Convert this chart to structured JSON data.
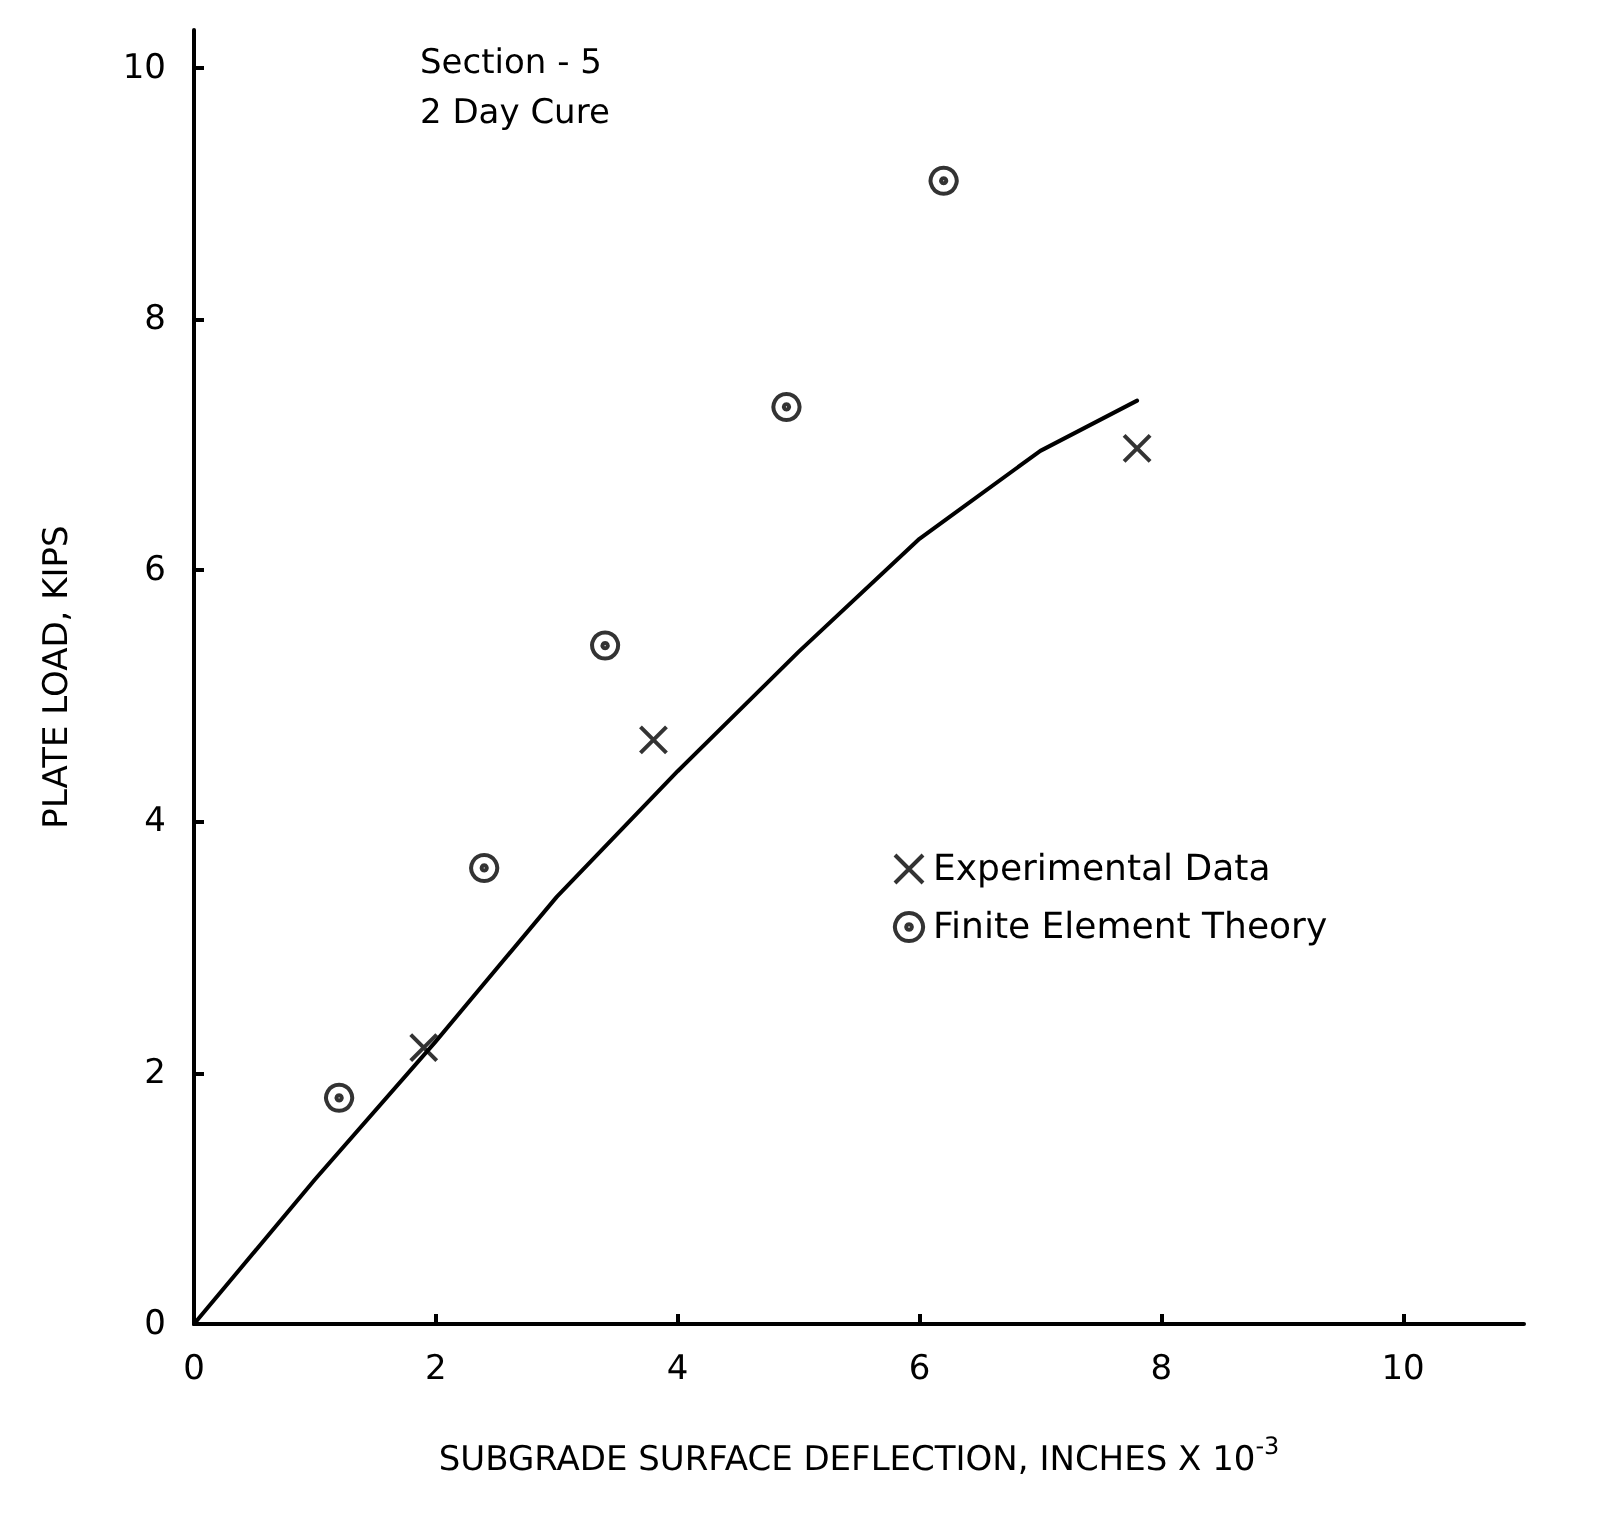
{
  "chart_data": {
    "type": "scatter",
    "title": "Section - 5",
    "subtitle": "2 Day Cure",
    "xlabel": "SUBGRADE SURFACE DEFLECTION, INCHES X 10$^{-3}$",
    "ylabel": "PLATE LOAD, KIPS",
    "xlim": [
      0,
      11
    ],
    "ylim": [
      0,
      10.3
    ],
    "xticks": [
      0,
      2,
      4,
      6,
      8,
      10
    ],
    "yticks": [
      0,
      2,
      4,
      6,
      8,
      10
    ],
    "grid": false,
    "legend": "right",
    "series": [
      {
        "name": "Experimental Data",
        "marker": "cross",
        "color": "#000000",
        "x": [
          1.9,
          3.8,
          7.8
        ],
        "values": [
          2.2,
          4.65,
          6.97
        ]
      },
      {
        "name": "Finite Element Theory",
        "marker": "circle",
        "color": "#000000",
        "x": [
          1.2,
          2.4,
          3.4,
          4.9,
          6.2
        ],
        "values": [
          1.8,
          3.63,
          5.4,
          7.3,
          9.1
        ]
      },
      {
        "type": "line",
        "marker": "none",
        "line_style": "solid",
        "color": "#000000",
        "x": [
          0,
          1,
          2,
          3,
          4,
          5,
          6,
          7,
          7.8
        ],
        "values": [
          0,
          1.15,
          2.25,
          3.4,
          4.4,
          5.35,
          6.25,
          6.95,
          7.35
        ]
      }
    ]
  }
}
